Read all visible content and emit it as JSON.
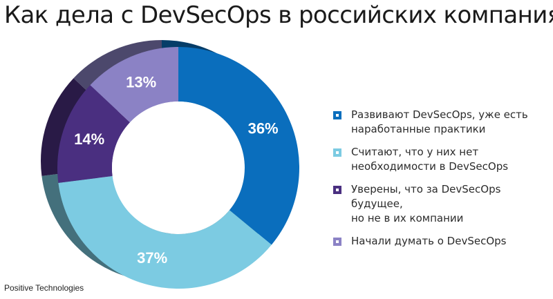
{
  "header": {
    "title": "Как дела с DevSecOps в российских компаниях"
  },
  "chart_data": {
    "type": "pie",
    "categories": [
      "Развивают DevSecOps, уже есть наработанные практики",
      "Считают, что у них нет необходимости в DevSecOps",
      "Уверены, что за DevSecOps будущее, но не в их компании",
      "Начали думать о DevSecOps"
    ],
    "values": [
      36,
      37,
      14,
      13
    ],
    "labels": [
      "36%",
      "37%",
      "14%",
      "13%"
    ],
    "colors": [
      "#0a6ebd",
      "#7ccbe2",
      "#4a2f80",
      "#8b82c5"
    ],
    "legend_position": "right"
  },
  "legend": {
    "items": [
      {
        "line1": "Развивают DevSecOps, уже есть",
        "line2": "наработанные практики"
      },
      {
        "line1": "Считают, что у них нет",
        "line2": "необходимости в DevSecOps"
      },
      {
        "line1": "Уверены, что за DevSecOps будущее,",
        "line2": "но не в их компании"
      },
      {
        "line1": "Начали думать о DevSecOps",
        "line2": ""
      }
    ]
  },
  "footer": {
    "source": "Positive Technologies"
  }
}
